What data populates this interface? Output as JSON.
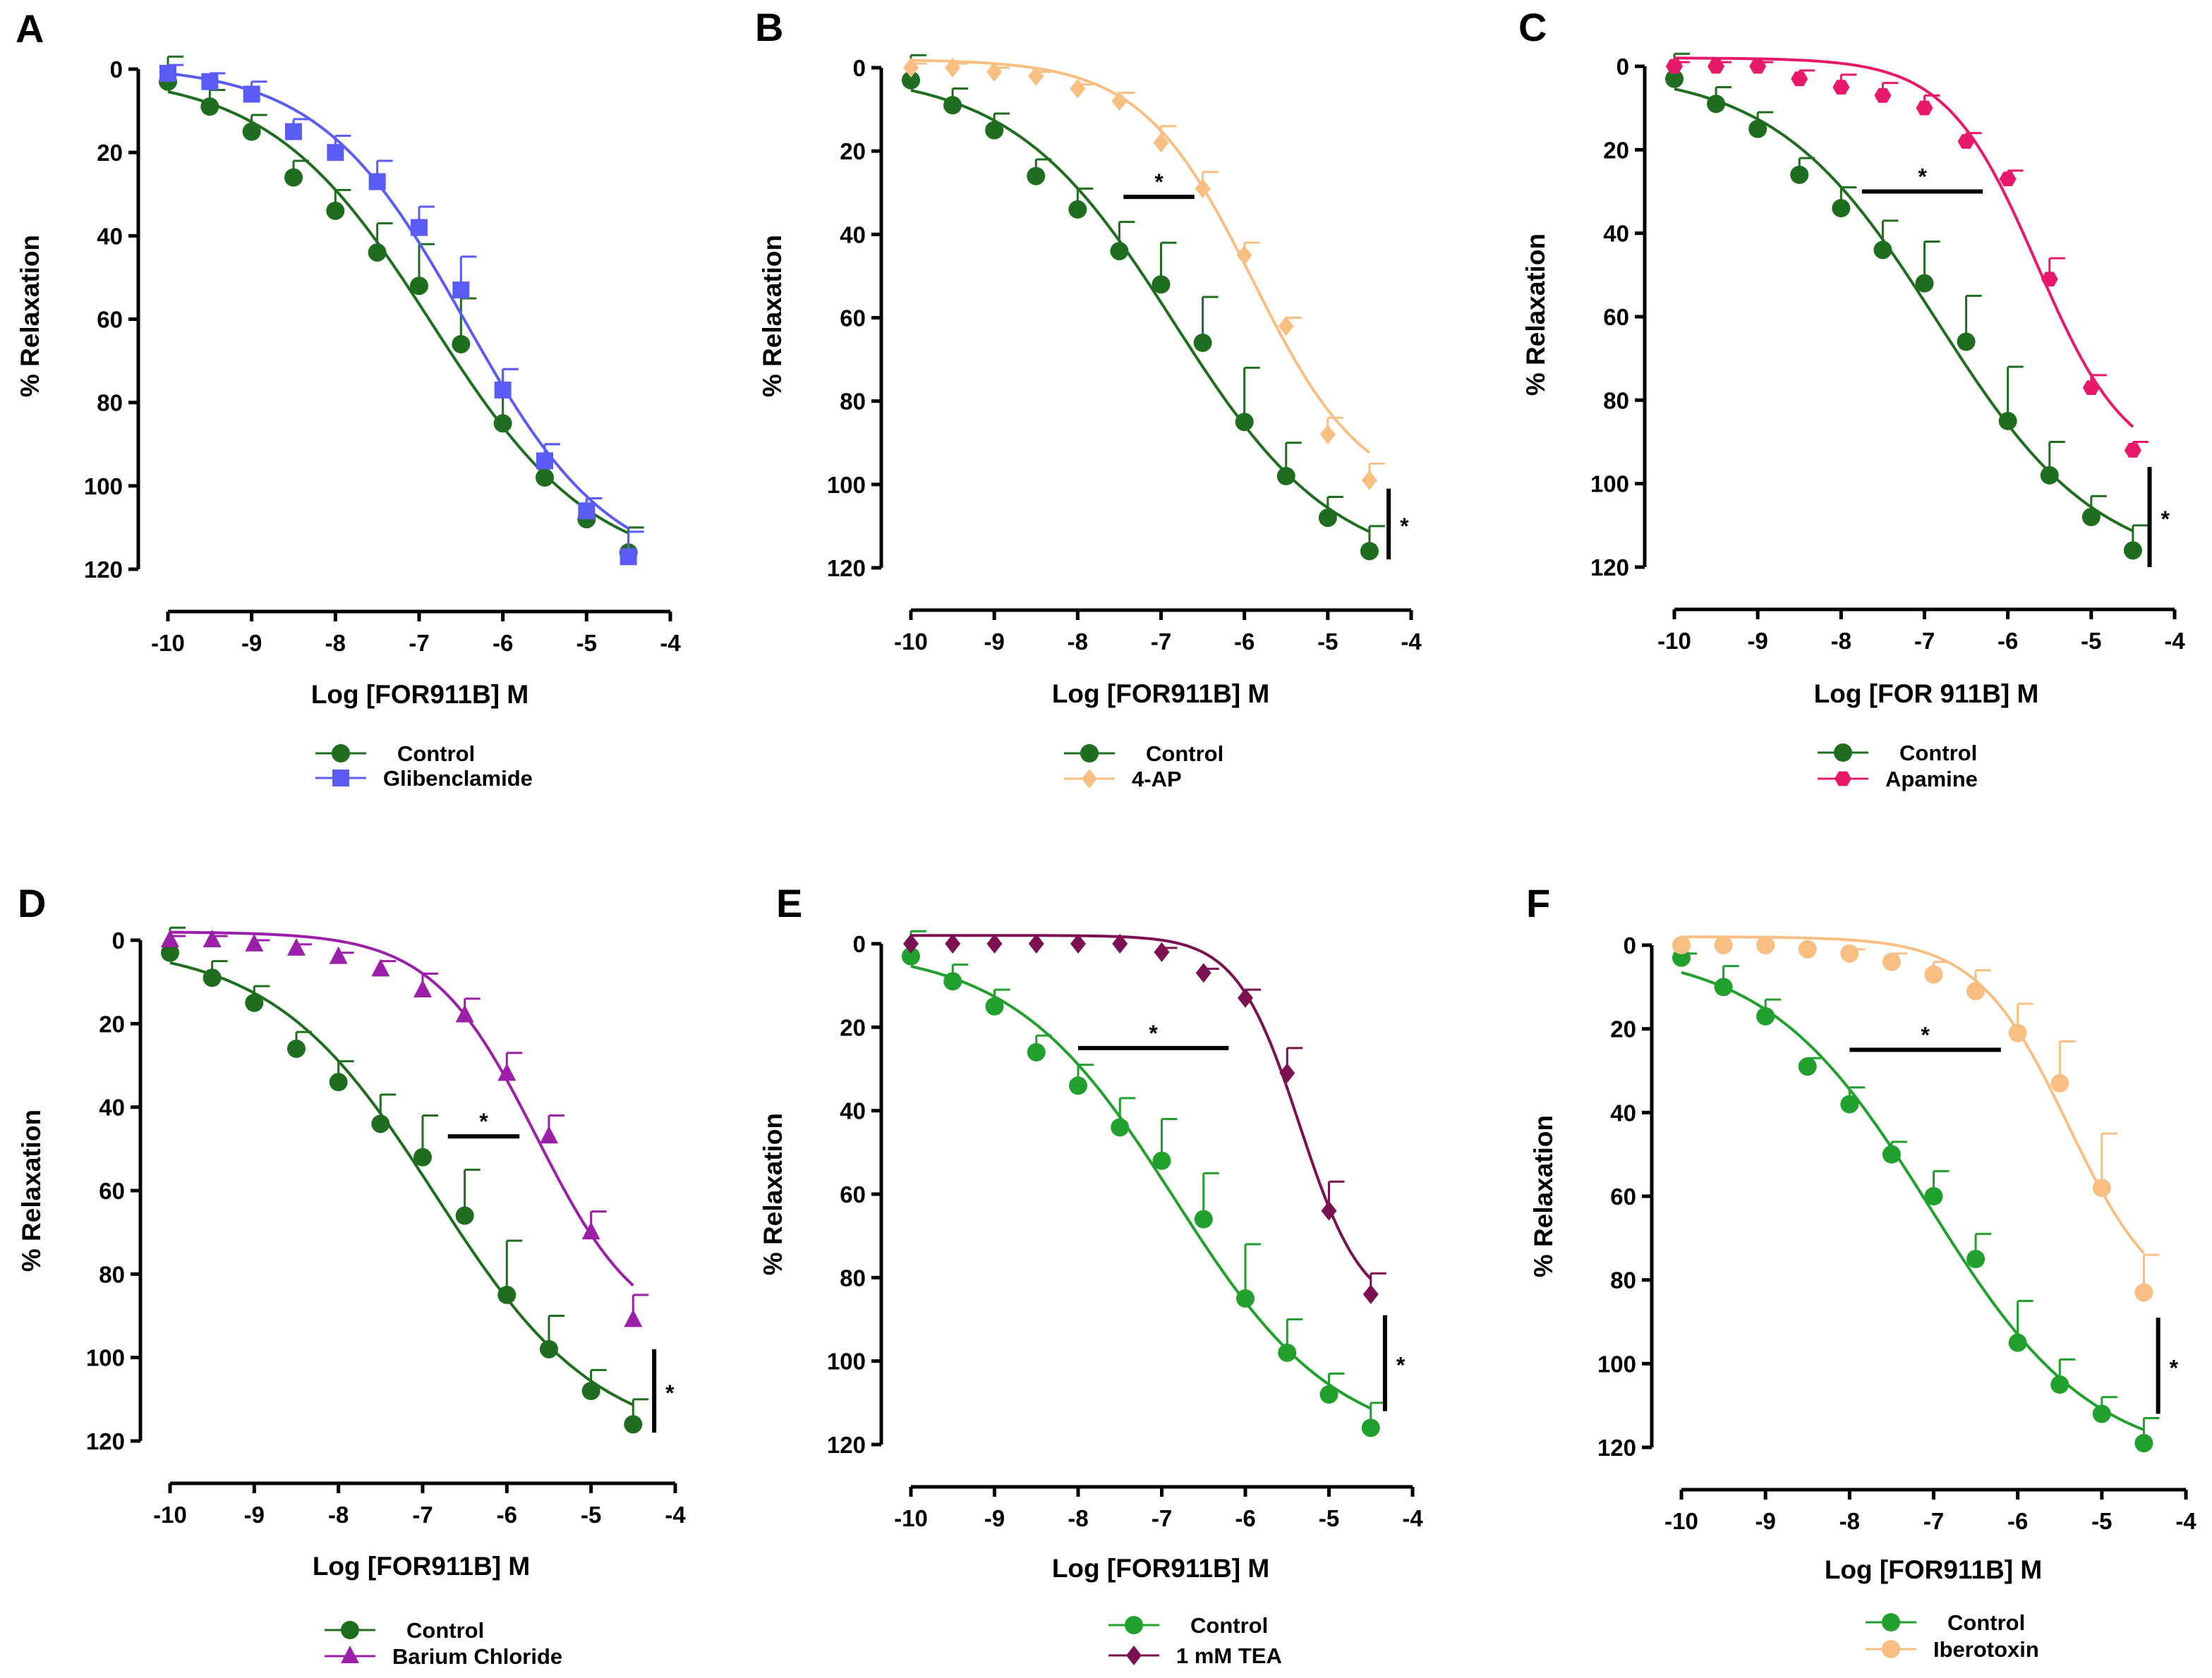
{
  "figure": {
    "panel_letters": [
      "A",
      "B",
      "C",
      "D",
      "E",
      "F"
    ]
  },
  "chart_data": [
    {
      "type": "line",
      "panel": "A",
      "xlabel": "Log [FOR911B] M",
      "ylabel": "% Relaxation",
      "xlim": [
        -10,
        -4
      ],
      "ylim": [
        0,
        120
      ],
      "y_inverted": true,
      "xticks": [
        "-10",
        "-9",
        "-8",
        "-7",
        "-6",
        "-5",
        "-4"
      ],
      "yticks": [
        "0",
        "20",
        "40",
        "60",
        "80",
        "100",
        "120"
      ],
      "series": [
        {
          "name": "Control",
          "color": "#1f6e1f",
          "marker": "circle",
          "x": [
            -10,
            -9.5,
            -9,
            -8.5,
            -8,
            -7.5,
            -7,
            -6.5,
            -6,
            -5.5,
            -5,
            -4.5
          ],
          "y": [
            3,
            9,
            15,
            26,
            34,
            44,
            52,
            66,
            85,
            98,
            108,
            116
          ],
          "err": [
            6,
            4,
            4,
            4,
            5,
            7,
            10,
            11,
            13,
            8,
            5,
            6
          ]
        },
        {
          "name": "Glibenclamide",
          "color": "#5b5bf5",
          "marker": "square",
          "x": [
            -10,
            -9.5,
            -9,
            -8.5,
            -8,
            -7.5,
            -7,
            -6.5,
            -6,
            -5.5,
            -5,
            -4.5
          ],
          "y": [
            1,
            3,
            6,
            15,
            20,
            27,
            38,
            53,
            77,
            94,
            106,
            117
          ],
          "err": [
            2,
            2,
            3,
            3,
            4,
            5,
            5,
            8,
            5,
            4,
            3,
            6
          ]
        }
      ],
      "significance": []
    },
    {
      "type": "line",
      "panel": "B",
      "xlabel": "Log [FOR911B] M",
      "ylabel": "% Relaxation",
      "xlim": [
        -10,
        -4
      ],
      "ylim": [
        0,
        120
      ],
      "y_inverted": true,
      "xticks": [
        "-10",
        "-9",
        "-8",
        "-7",
        "-6",
        "-5",
        "-4"
      ],
      "yticks": [
        "0",
        "20",
        "40",
        "60",
        "80",
        "100",
        "120"
      ],
      "series": [
        {
          "name": "Control",
          "color": "#1f6e1f",
          "marker": "circle",
          "x": [
            -10,
            -9.5,
            -9,
            -8.5,
            -8,
            -7.5,
            -7,
            -6.5,
            -6,
            -5.5,
            -5,
            -4.5
          ],
          "y": [
            3,
            9,
            15,
            26,
            34,
            44,
            52,
            66,
            85,
            98,
            108,
            116
          ],
          "err": [
            6,
            4,
            4,
            4,
            5,
            7,
            10,
            11,
            13,
            8,
            5,
            6
          ]
        },
        {
          "name": "4-AP",
          "color": "#f9bf82",
          "marker": "diamond",
          "x": [
            -10,
            -9.5,
            -9,
            -8.5,
            -8,
            -7.5,
            -7,
            -6.5,
            -6,
            -5.5,
            -5,
            -4.5
          ],
          "y": [
            0,
            0,
            1,
            2,
            5,
            8,
            18,
            29,
            45,
            62,
            88,
            99
          ],
          "err": [
            1,
            1,
            1,
            1,
            1,
            2,
            4,
            4,
            3,
            2,
            4,
            4
          ]
        }
      ],
      "significance": [
        {
          "kind": "horizontal",
          "x1": -7.45,
          "x2": -6.6,
          "y": 31,
          "label": "*"
        },
        {
          "kind": "vertical",
          "x": -4.27,
          "y1": 101,
          "y2": 118,
          "label": "*"
        }
      ]
    },
    {
      "type": "line",
      "panel": "C",
      "xlabel": "Log [FOR 911B] M",
      "ylabel": "% Relaxation",
      "xlim": [
        -10,
        -4
      ],
      "ylim": [
        0,
        120
      ],
      "y_inverted": true,
      "xticks": [
        "-10",
        "-9",
        "-8",
        "-7",
        "-6",
        "-5",
        "-4"
      ],
      "yticks": [
        "0",
        "20",
        "40",
        "60",
        "80",
        "100",
        "120"
      ],
      "series": [
        {
          "name": "Control",
          "color": "#1f6e1f",
          "marker": "circle",
          "x": [
            -10,
            -9.5,
            -9,
            -8.5,
            -8,
            -7.5,
            -7,
            -6.5,
            -6,
            -5.5,
            -5,
            -4.5
          ],
          "y": [
            3,
            9,
            15,
            26,
            34,
            44,
            52,
            66,
            85,
            98,
            108,
            116
          ],
          "err": [
            6,
            4,
            4,
            4,
            5,
            7,
            10,
            11,
            13,
            8,
            5,
            6
          ]
        },
        {
          "name": "Apamine",
          "color": "#e8196b",
          "marker": "hexagon",
          "x": [
            -10,
            -9.5,
            -9,
            -8.5,
            -8,
            -7.5,
            -7,
            -6.5,
            -6,
            -5.5,
            -5,
            -4.5
          ],
          "y": [
            0,
            0,
            0,
            3,
            5,
            7,
            10,
            18,
            27,
            51,
            77,
            92
          ],
          "err": [
            1,
            1,
            1,
            2,
            3,
            3,
            3,
            2,
            2,
            5,
            3,
            2
          ]
        }
      ],
      "significance": [
        {
          "kind": "horizontal",
          "x1": -7.75,
          "x2": -6.3,
          "y": 30,
          "label": "*"
        },
        {
          "kind": "vertical",
          "x": -4.3,
          "y1": 96,
          "y2": 120,
          "label": "*"
        }
      ]
    },
    {
      "type": "line",
      "panel": "D",
      "xlabel": "Log [FOR911B] M",
      "ylabel": "% Relaxation",
      "xlim": [
        -10,
        -4
      ],
      "ylim": [
        0,
        120
      ],
      "y_inverted": true,
      "xticks": [
        "-10",
        "-9",
        "-8",
        "-7",
        "-6",
        "-5",
        "-4"
      ],
      "yticks": [
        "0",
        "20",
        "40",
        "60",
        "80",
        "100",
        "120"
      ],
      "series": [
        {
          "name": "Control",
          "color": "#1f6e1f",
          "marker": "circle",
          "x": [
            -10,
            -9.5,
            -9,
            -8.5,
            -8,
            -7.5,
            -7,
            -6.5,
            -6,
            -5.5,
            -5,
            -4.5
          ],
          "y": [
            3,
            9,
            15,
            26,
            34,
            44,
            52,
            66,
            85,
            98,
            108,
            116
          ],
          "err": [
            6,
            4,
            4,
            4,
            5,
            7,
            10,
            11,
            13,
            8,
            5,
            6
          ]
        },
        {
          "name": "Barium Chloride",
          "color": "#9b1fa8",
          "marker": "triangle",
          "x": [
            -10,
            -9.5,
            -9,
            -8.5,
            -8,
            -7.5,
            -7,
            -6.5,
            -6,
            -5.5,
            -5,
            -4.5
          ],
          "y": [
            0,
            0,
            1,
            2,
            4,
            7,
            12,
            18,
            32,
            47,
            70,
            91
          ],
          "err": [
            1,
            1,
            1,
            1,
            1,
            2,
            4,
            4,
            5,
            5,
            5,
            6
          ]
        }
      ],
      "significance": [
        {
          "kind": "horizontal",
          "x1": -6.7,
          "x2": -5.85,
          "y": 47,
          "label": "*"
        },
        {
          "kind": "vertical",
          "x": -4.25,
          "y1": 98,
          "y2": 118,
          "label": "*"
        }
      ]
    },
    {
      "type": "line",
      "panel": "E",
      "xlabel": "Log [FOR911B] M",
      "ylabel": "% Relaxation",
      "xlim": [
        -10,
        -4
      ],
      "ylim": [
        0,
        120
      ],
      "y_inverted": true,
      "xticks": [
        "-10",
        "-9",
        "-8",
        "-7",
        "-6",
        "-5",
        "-4"
      ],
      "yticks": [
        "0",
        "20",
        "40",
        "60",
        "80",
        "100",
        "120"
      ],
      "series": [
        {
          "name": "Control",
          "color": "#21a02e",
          "marker": "circle",
          "x": [
            -10,
            -9.5,
            -9,
            -8.5,
            -8,
            -7.5,
            -7,
            -6.5,
            -6,
            -5.5,
            -5,
            -4.5
          ],
          "y": [
            3,
            9,
            15,
            26,
            34,
            44,
            52,
            66,
            85,
            98,
            108,
            116
          ],
          "err": [
            6,
            4,
            4,
            4,
            5,
            7,
            10,
            11,
            13,
            8,
            5,
            6
          ]
        },
        {
          "name": "1 mM TEA",
          "color": "#7b1150",
          "marker": "diamond",
          "x": [
            -10,
            -9.5,
            -9,
            -8.5,
            -8,
            -7.5,
            -7,
            -6.5,
            -6,
            -5.5,
            -5,
            -4.5
          ],
          "y": [
            0,
            0,
            0,
            0,
            0,
            0,
            2,
            7,
            13,
            31,
            64,
            84
          ],
          "err": [
            0,
            0,
            0,
            0,
            0,
            0,
            1,
            1,
            2,
            6,
            7,
            5
          ]
        }
      ],
      "significance": [
        {
          "kind": "horizontal",
          "x1": -8,
          "x2": -6.2,
          "y": 25,
          "label": "*"
        },
        {
          "kind": "vertical",
          "x": -4.33,
          "y1": 89,
          "y2": 112,
          "label": "*"
        }
      ]
    },
    {
      "type": "line",
      "panel": "F",
      "xlabel": "Log [FOR911B] M",
      "ylabel": "% Relaxation",
      "xlim": [
        -10,
        -4
      ],
      "ylim": [
        0,
        120
      ],
      "y_inverted": true,
      "xticks": [
        "-10",
        "-9",
        "-8",
        "-7",
        "-6",
        "-5",
        "-4"
      ],
      "yticks": [
        "0",
        "20",
        "40",
        "60",
        "80",
        "100",
        "120"
      ],
      "series": [
        {
          "name": "Control",
          "color": "#21a02e",
          "marker": "circle",
          "x": [
            -10,
            -9.5,
            -9,
            -8.5,
            -8,
            -7.5,
            -7,
            -6.5,
            -6,
            -5.5,
            -5,
            -4.5
          ],
          "y": [
            3,
            10,
            17,
            29,
            38,
            50,
            60,
            75,
            95,
            105,
            112,
            119
          ],
          "err": [
            1,
            5,
            4,
            2,
            4,
            3,
            6,
            6,
            10,
            6,
            4,
            6
          ]
        },
        {
          "name": "Iberotoxin",
          "color": "#f9bf82",
          "marker": "circle",
          "x": [
            -10,
            -9.5,
            -9,
            -8.5,
            -8,
            -7.5,
            -7,
            -6.5,
            -6,
            -5.5,
            -5,
            -4.5
          ],
          "y": [
            0,
            0,
            0,
            1,
            2,
            4,
            7,
            11,
            21,
            33,
            58,
            83
          ],
          "err": [
            0,
            0,
            0,
            0,
            1,
            2,
            3,
            5,
            7,
            10,
            13,
            9
          ]
        }
      ],
      "significance": [
        {
          "kind": "horizontal",
          "x1": -8,
          "x2": -6.2,
          "y": 25,
          "label": "*"
        },
        {
          "kind": "vertical",
          "x": -4.33,
          "y1": 89,
          "y2": 112,
          "label": "*"
        }
      ]
    }
  ]
}
